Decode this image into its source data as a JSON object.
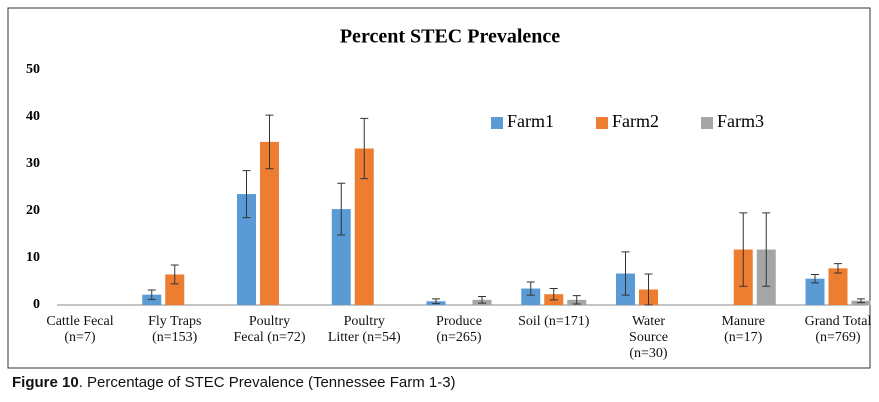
{
  "chart_data": {
    "type": "bar",
    "title": "Percent STEC Prevalence",
    "categories": [
      "Cattle Fecal\n(n=7)",
      "Fly Traps\n(n=153)",
      "Poultry\nFecal (n=72)",
      "Poultry\nLitter (n=54)",
      "Produce\n(n=265)",
      "Soil (n=171)",
      "Water\nSource\n(n=30)",
      "Manure\n(n=17)",
      "Grand Total\n(n=769)"
    ],
    "series": [
      {
        "name": "Farm1",
        "color": "#5b9bd5",
        "values": [
          null,
          2.2,
          23.6,
          20.4,
          0.8,
          3.5,
          6.7,
          null,
          5.6
        ],
        "errors": [
          null,
          1.0,
          5.0,
          5.5,
          0.5,
          1.4,
          4.6,
          null,
          0.9
        ]
      },
      {
        "name": "Farm2",
        "color": "#ed7d31",
        "values": [
          null,
          6.5,
          34.7,
          33.3,
          null,
          2.3,
          3.3,
          11.8,
          7.8
        ],
        "errors": [
          null,
          2.0,
          5.7,
          6.4,
          null,
          1.2,
          3.3,
          7.8,
          1.0
        ]
      },
      {
        "name": "Farm3",
        "color": "#a5a5a5",
        "values": [
          null,
          null,
          null,
          null,
          1.1,
          1.1,
          null,
          11.8,
          0.9
        ],
        "errors": [
          null,
          null,
          null,
          null,
          0.7,
          0.9,
          null,
          7.8,
          0.4
        ]
      }
    ],
    "ylim": [
      0,
      50
    ],
    "yticks": [
      0,
      10,
      20,
      30,
      40,
      50
    ],
    "grid": false,
    "legend": "upper-right"
  },
  "caption": {
    "label": "Figure 10",
    "text": ". Percentage of STEC Prevalence (Tennessee Farm 1-3)"
  }
}
